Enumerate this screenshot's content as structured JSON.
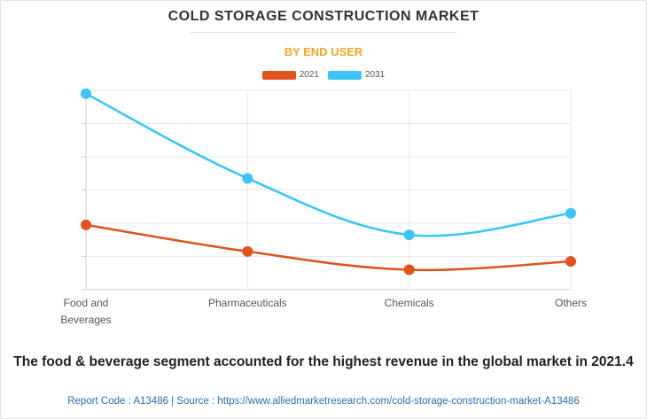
{
  "title": "COLD STORAGE CONSTRUCTION MARKET",
  "subtitle": "BY END USER",
  "colors": {
    "series_2021": "#e0531f",
    "series_2031": "#3cc6f7",
    "subtitle": "#f5a623",
    "footer": "#2a6fb5"
  },
  "chart_data": {
    "type": "line",
    "title": "COLD STORAGE CONSTRUCTION MARKET",
    "subtitle": "BY END USER",
    "categories": [
      [
        "Food and",
        "Beverages"
      ],
      [
        "Pharmaceuticals"
      ],
      [
        "Chemicals"
      ],
      [
        "Others"
      ]
    ],
    "series": [
      {
        "name": "2021",
        "values": [
          3.9,
          2.3,
          1.2,
          1.7
        ]
      },
      {
        "name": "2031",
        "values": [
          11.8,
          6.7,
          3.3,
          4.6
        ]
      }
    ],
    "ylim": [
      0,
      12
    ],
    "y_gridlines": 6,
    "y_tick_labels_shown": false,
    "grid": true,
    "legend": "top-center",
    "smooth": true
  },
  "insight": "The food & beverage segment accounted for the highest revenue in the global market in 2021.4",
  "footer": "Report Code : A13486  |  Source : https://www.alliedmarketresearch.com/cold-storage-construction-market-A13486"
}
